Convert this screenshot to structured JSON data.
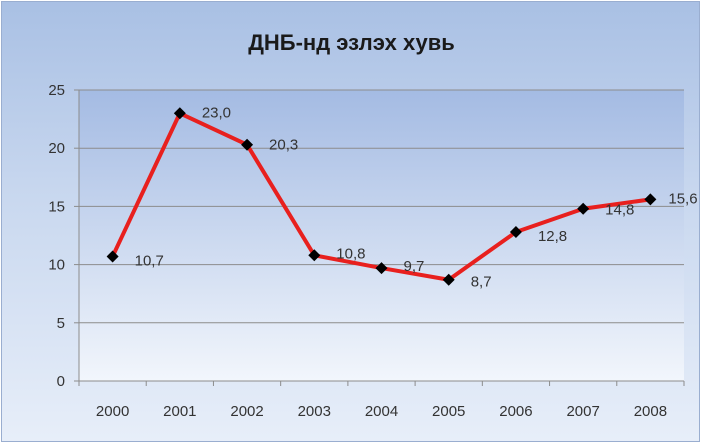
{
  "chart_data": {
    "type": "line",
    "title": "ДНБ-нд эзлэх хувь",
    "xlabel": "",
    "ylabel": "",
    "categories": [
      "2000",
      "2001",
      "2002",
      "2003",
      "2004",
      "2005",
      "2006",
      "2007",
      "2008"
    ],
    "series": [
      {
        "values": [
          10.7,
          23.0,
          20.3,
          10.8,
          9.7,
          8.7,
          12.8,
          14.8,
          15.6
        ],
        "data_labels": [
          "10,7",
          "23,0",
          "20,3",
          "10,8",
          "9,7",
          "8,7",
          "12,8",
          "14,8",
          "15,6"
        ],
        "line_color": "#e8201e",
        "marker_color": "#000000",
        "marker": "diamond"
      }
    ],
    "ylim": [
      0,
      25
    ],
    "y_ticks": [
      0,
      5,
      10,
      15,
      20,
      25
    ],
    "grid": true,
    "legend": "none"
  },
  "colors": {
    "plot_background_top": "#a4bbe3",
    "plot_background_bottom": "#f2f6fc",
    "gridline": "#8c8c8c"
  }
}
